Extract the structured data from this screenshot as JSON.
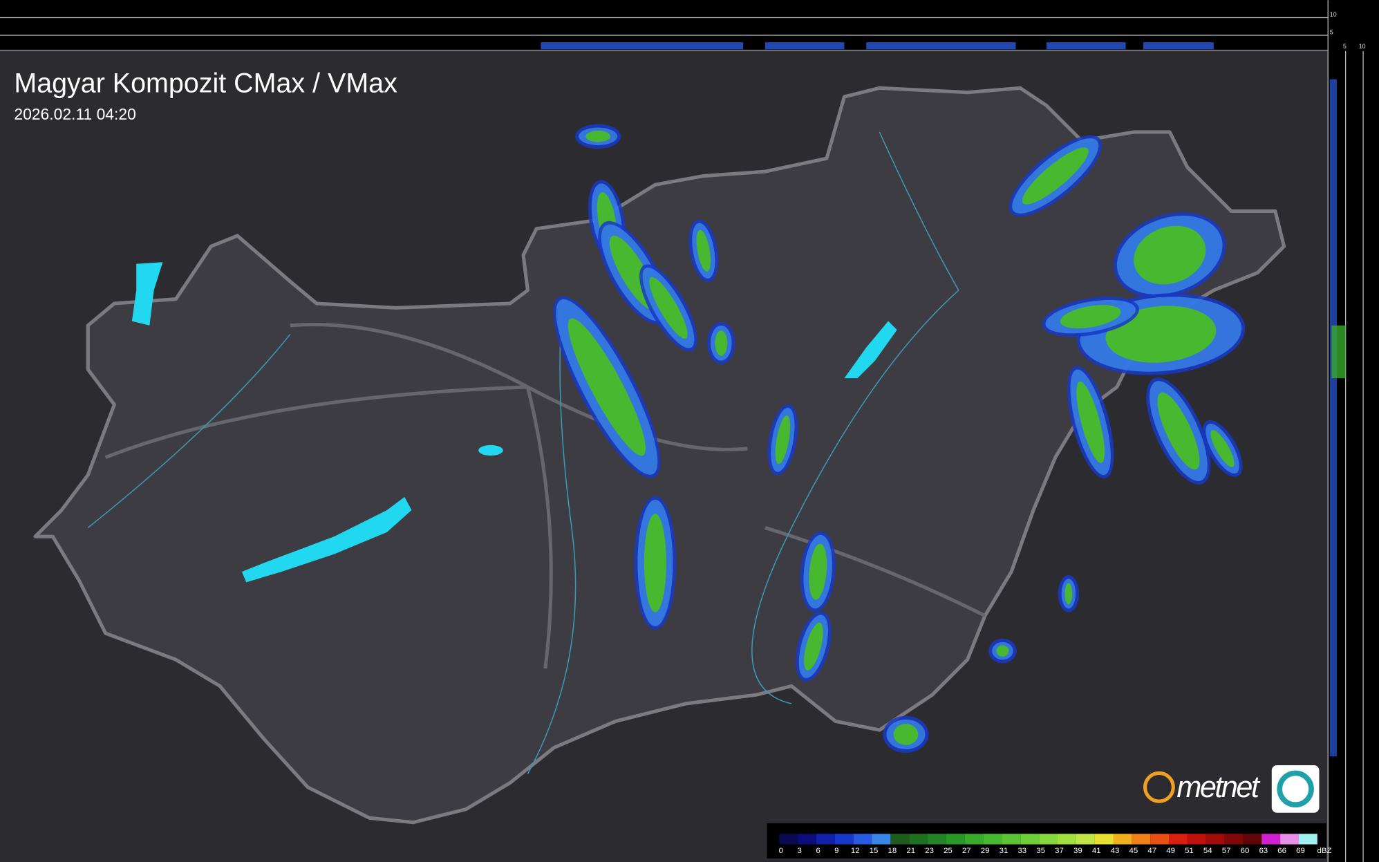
{
  "header": {
    "title": "Magyar Kompozit CMax / VMax",
    "timestamp": "2026.02.11 04:20"
  },
  "top_profile": {
    "ticks": [
      "10",
      "5"
    ]
  },
  "side_profile": {
    "ticks": [
      "5",
      "10"
    ]
  },
  "logo": {
    "text": "metnet"
  },
  "legend": {
    "unit": "dBZ",
    "items": [
      {
        "label": "0",
        "color": "#0a0a50"
      },
      {
        "label": "3",
        "color": "#0c0c7a"
      },
      {
        "label": "6",
        "color": "#1020a8"
      },
      {
        "label": "9",
        "color": "#1838c8"
      },
      {
        "label": "12",
        "color": "#2a5ae0"
      },
      {
        "label": "15",
        "color": "#3a86e8"
      },
      {
        "label": "18",
        "color": "#1e5c1e"
      },
      {
        "label": "21",
        "color": "#1e7020"
      },
      {
        "label": "23",
        "color": "#228424"
      },
      {
        "label": "25",
        "color": "#2a9828"
      },
      {
        "label": "27",
        "color": "#38aa2c"
      },
      {
        "label": "29",
        "color": "#48b830"
      },
      {
        "label": "31",
        "color": "#5ac434"
      },
      {
        "label": "33",
        "color": "#6ece38"
      },
      {
        "label": "35",
        "color": "#86d83c"
      },
      {
        "label": "37",
        "color": "#a0e040"
      },
      {
        "label": "39",
        "color": "#c0e448"
      },
      {
        "label": "41",
        "color": "#e8e030"
      },
      {
        "label": "43",
        "color": "#f0b020"
      },
      {
        "label": "45",
        "color": "#f08018"
      },
      {
        "label": "47",
        "color": "#e85014"
      },
      {
        "label": "49",
        "color": "#d82010"
      },
      {
        "label": "51",
        "color": "#c0100c"
      },
      {
        "label": "54",
        "color": "#a00c0a"
      },
      {
        "label": "57",
        "color": "#800808"
      },
      {
        "label": "60",
        "color": "#600606"
      },
      {
        "label": "63",
        "color": "#d020d0"
      },
      {
        "label": "66",
        "color": "#e890e8"
      },
      {
        "label": "69",
        "color": "#a0f0f0"
      }
    ]
  }
}
